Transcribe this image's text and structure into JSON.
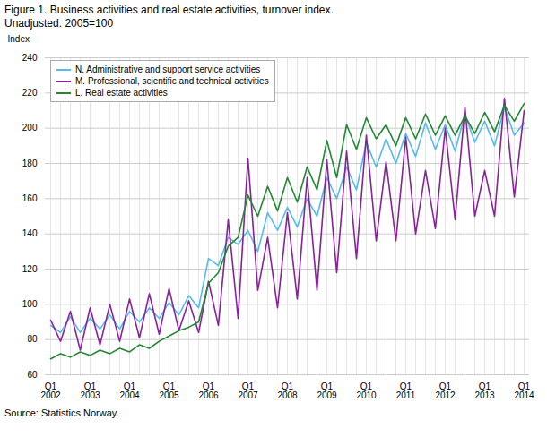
{
  "chart_data": {
    "type": "line",
    "title": "Figure 1. Business activities and real estate activities, turnover index.",
    "subtitle": "Unadjusted. 2005=100",
    "y_label": "Index",
    "source": "Source: Statistics Norway.",
    "categories": [
      "Q1\n2002",
      null,
      null,
      null,
      "Q1\n2003",
      null,
      null,
      null,
      "Q1\n2004",
      null,
      null,
      null,
      "Q1\n2005",
      null,
      null,
      null,
      "Q1\n2006",
      null,
      null,
      null,
      "Q1\n2007",
      null,
      null,
      null,
      "Q1\n2008",
      null,
      null,
      null,
      "Q1\n2009",
      null,
      null,
      null,
      "Q1\n2010",
      null,
      null,
      null,
      "Q1\n2011",
      null,
      null,
      null,
      "Q1\n2012",
      null,
      null,
      null,
      "Q1\n2013",
      null,
      null,
      null,
      "Q1\n2014"
    ],
    "series": [
      {
        "name": "N. Administrative and support service activities",
        "color": "#55BBEE",
        "values": [
          88,
          84,
          93,
          84,
          92,
          86,
          94,
          86,
          96,
          90,
          98,
          92,
          101,
          94,
          105,
          98,
          126,
          122,
          138,
          134,
          142,
          130,
          152,
          142,
          155,
          144,
          160,
          150,
          172,
          160,
          178,
          165,
          192,
          178,
          194,
          180,
          197,
          184,
          203,
          188,
          202,
          187,
          208,
          192,
          204,
          190,
          212,
          196,
          203
        ]
      },
      {
        "name": "M. Professional, scientific and technical activities",
        "color": "#882299",
        "values": [
          91,
          79,
          96,
          74,
          98,
          77,
          100,
          79,
          103,
          81,
          106,
          83,
          109,
          85,
          102,
          84,
          113,
          88,
          148,
          92,
          183,
          108,
          138,
          98,
          152,
          103,
          172,
          108,
          182,
          118,
          187,
          126,
          196,
          136,
          181,
          136,
          195,
          140,
          176,
          143,
          200,
          148,
          212,
          150,
          176,
          150,
          217,
          161,
          210
        ]
      },
      {
        "name": "L. Real estate activities",
        "color": "#228833",
        "values": [
          69,
          72,
          70,
          73,
          71,
          74,
          72,
          75,
          73,
          77,
          75,
          79,
          82,
          85,
          87,
          90,
          112,
          118,
          133,
          138,
          162,
          150,
          167,
          153,
          172,
          158,
          178,
          165,
          193,
          172,
          202,
          188,
          206,
          194,
          202,
          190,
          206,
          194,
          208,
          196,
          207,
          196,
          207,
          197,
          209,
          198,
          213,
          204,
          214
        ]
      }
    ],
    "ylim": [
      60,
      240
    ],
    "yticks": [
      60,
      80,
      100,
      120,
      140,
      160,
      180,
      200,
      220,
      240
    ],
    "grid": true,
    "legend": "upper left"
  }
}
